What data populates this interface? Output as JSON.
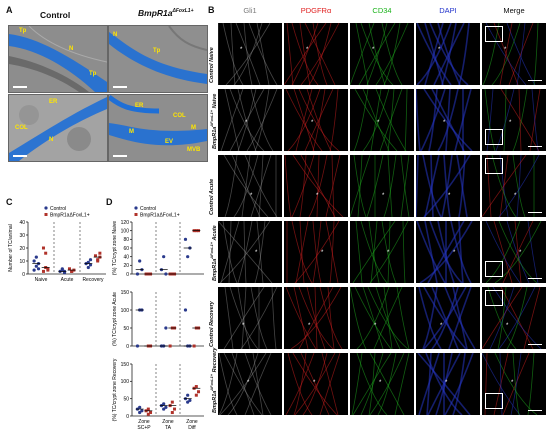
{
  "panelA": {
    "letter": "A",
    "col1": "Control",
    "col2_main": "BmpR1a",
    "col2_sup": "ΔFoxL1+",
    "tags_tl": [
      "Tp",
      "N",
      "Tp"
    ],
    "tags_tr": [
      "N",
      "Tp"
    ],
    "tags_bl": [
      "ER",
      "COL",
      "N"
    ],
    "tags_br": [
      "ER",
      "COL",
      "M",
      "M",
      "EV",
      "MVB"
    ]
  },
  "panelB": {
    "letter": "B",
    "columns": [
      "Gli1",
      "PDGFRα",
      "CD34",
      "DAPI",
      "Merge"
    ],
    "column_colors": [
      "#7a7a7a",
      "#e02020",
      "#19b319",
      "#2233cc",
      "#111111"
    ],
    "rows": [
      {
        "main": "Control Naive",
        "sup": ""
      },
      {
        "main": "BmpR1a",
        "sup": "ΔFoxL1+",
        "tail": " Naive"
      },
      {
        "main": "Control Acute",
        "sup": ""
      },
      {
        "main": "BmpR1a",
        "sup": "ΔFoxL1+",
        "tail": " Acute"
      },
      {
        "main": "Control Recovery",
        "sup": ""
      },
      {
        "main": "BmpR1a",
        "sup": "ΔFoxL1+",
        "tail": " Recovery"
      }
    ]
  },
  "panelC": {
    "letter": "C",
    "legend": [
      "Control",
      "BmpR1aΔFoxL1+"
    ],
    "colors": {
      "control": "#2a3a8c",
      "mutant": "#b0322a"
    }
  },
  "panelD": {
    "letter": "D",
    "legend": [
      "Control",
      "BmpR1aΔFoxL1+"
    ],
    "xcats": [
      "Zone SC+P",
      "Zone TA",
      "Zone Diff"
    ]
  },
  "chart_data": [
    {
      "type": "scatter",
      "panel": "C",
      "ylabel": "Number of TC/animal",
      "categories": [
        "Naive",
        "Acute",
        "Recovery"
      ],
      "ylim": [
        0,
        40
      ],
      "yticks": [
        0,
        10,
        20,
        30,
        40
      ],
      "series": [
        {
          "name": "Control",
          "points": [
            [
              0,
              6
            ],
            [
              0,
              8
            ],
            [
              0,
              10
            ],
            [
              0,
              13
            ],
            [
              0,
              4
            ],
            [
              0,
              3
            ],
            [
              1,
              3
            ],
            [
              1,
              2
            ],
            [
              1,
              2
            ],
            [
              1,
              4
            ],
            [
              1,
              1
            ],
            [
              2,
              5
            ],
            [
              2,
              7
            ],
            [
              2,
              8
            ],
            [
              2,
              9
            ],
            [
              2,
              11
            ]
          ]
        },
        {
          "name": "BmpR1aΔFoxL1+",
          "points": [
            [
              0,
              16
            ],
            [
              0,
              3
            ],
            [
              0,
              2
            ],
            [
              0,
              5
            ],
            [
              0,
              4
            ],
            [
              0,
              20
            ],
            [
              1,
              2
            ],
            [
              1,
              3
            ],
            [
              1,
              4
            ],
            [
              1,
              2
            ],
            [
              2,
              10
            ],
            [
              2,
              13
            ],
            [
              2,
              14
            ],
            [
              2,
              11
            ],
            [
              2,
              16
            ]
          ]
        }
      ]
    },
    {
      "type": "scatter",
      "panel": "D-top",
      "ylabel": "(%) TC/crypt zone Naive",
      "categories": [
        "Zone SC+P",
        "Zone TA",
        "Zone Diff"
      ],
      "ylim": [
        0,
        120
      ],
      "yticks": [
        0,
        20,
        40,
        60,
        80,
        100,
        120
      ],
      "series": [
        {
          "name": "Control",
          "points": [
            [
              0,
              30
            ],
            [
              0,
              10
            ],
            [
              0,
              0
            ],
            [
              1,
              40
            ],
            [
              1,
              0
            ],
            [
              1,
              10
            ],
            [
              2,
              40
            ],
            [
              2,
              60
            ],
            [
              2,
              80
            ]
          ]
        },
        {
          "name": "BmpR1aΔFoxL1+",
          "points": [
            [
              0,
              0
            ],
            [
              0,
              0
            ],
            [
              0,
              0
            ],
            [
              1,
              0
            ],
            [
              1,
              0
            ],
            [
              1,
              0
            ],
            [
              2,
              100
            ],
            [
              2,
              100
            ],
            [
              2,
              100
            ]
          ]
        }
      ]
    },
    {
      "type": "scatter",
      "panel": "D-mid",
      "ylabel": "(%) TC/crypt zone Acute",
      "categories": [
        "Zone SC+P",
        "Zone TA",
        "Zone Diff"
      ],
      "ylim": [
        0,
        150
      ],
      "yticks": [
        0,
        50,
        100,
        150
      ],
      "series": [
        {
          "name": "Control",
          "points": [
            [
              0,
              100
            ],
            [
              0,
              100
            ],
            [
              0,
              0
            ],
            [
              1,
              0
            ],
            [
              1,
              50
            ],
            [
              1,
              0
            ],
            [
              2,
              0
            ],
            [
              2,
              0
            ],
            [
              2,
              100
            ]
          ]
        },
        {
          "name": "BmpR1aΔFoxL1+",
          "points": [
            [
              0,
              0
            ],
            [
              0,
              0
            ],
            [
              1,
              50
            ],
            [
              1,
              50
            ],
            [
              1,
              0
            ],
            [
              2,
              50
            ],
            [
              2,
              50
            ],
            [
              2,
              0
            ]
          ]
        }
      ]
    },
    {
      "type": "scatter",
      "panel": "D-bot",
      "ylabel": "(%) TC/crypt zone Recovery",
      "categories": [
        "Zone SC+P",
        "Zone TA",
        "Zone Diff"
      ],
      "ylim": [
        0,
        150
      ],
      "yticks": [
        0,
        50,
        100,
        150
      ],
      "series": [
        {
          "name": "Control",
          "points": [
            [
              0,
              10
            ],
            [
              0,
              15
            ],
            [
              0,
              20
            ],
            [
              0,
              25
            ],
            [
              1,
              20
            ],
            [
              1,
              25
            ],
            [
              1,
              30
            ],
            [
              1,
              35
            ],
            [
              2,
              40
            ],
            [
              2,
              45
            ],
            [
              2,
              50
            ],
            [
              2,
              60
            ]
          ]
        },
        {
          "name": "BmpR1aΔFoxL1+",
          "points": [
            [
              0,
              5
            ],
            [
              0,
              10
            ],
            [
              0,
              15
            ],
            [
              0,
              20
            ],
            [
              1,
              10
            ],
            [
              1,
              20
            ],
            [
              1,
              30
            ],
            [
              1,
              40
            ],
            [
              2,
              60
            ],
            [
              2,
              70
            ],
            [
              2,
              80
            ],
            [
              2,
              85
            ]
          ]
        }
      ]
    }
  ]
}
